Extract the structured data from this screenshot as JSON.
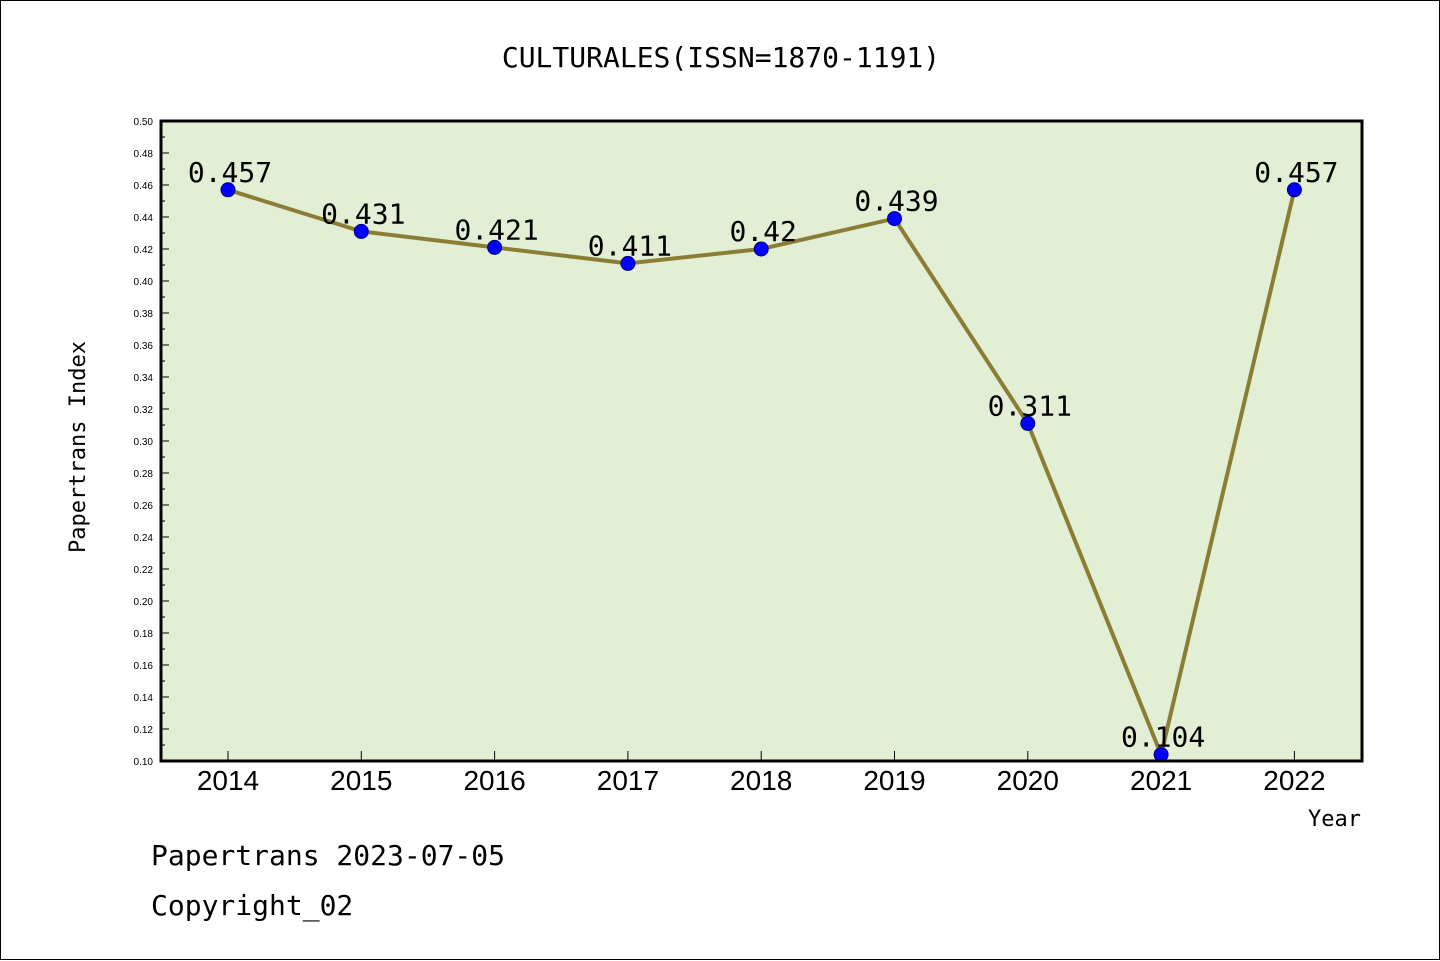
{
  "chart_data": {
    "type": "line",
    "title": "CULTURALES(ISSN=1870-1191)",
    "xlabel": "Year",
    "ylabel": "Papertrans Index",
    "categories": [
      "2014",
      "2015",
      "2016",
      "2017",
      "2018",
      "2019",
      "2020",
      "2021",
      "2022"
    ],
    "values": [
      0.457,
      0.431,
      0.421,
      0.411,
      0.42,
      0.439,
      0.311,
      0.104,
      0.457
    ],
    "data_labels": [
      "0.457",
      "0.431",
      "0.421",
      "0.411",
      "0.42",
      "0.439",
      "0.311",
      "0.104",
      "0.457"
    ],
    "ylim": [
      0.1,
      0.5
    ],
    "ytick_step": 0.02,
    "grid": false,
    "colors": {
      "plot_background": "#e2efd5",
      "line": "#8b7d34",
      "marker": "#0000ff"
    }
  },
  "footer": {
    "line1": "Papertrans 2023-07-05",
    "line2": "Copyright_02"
  }
}
